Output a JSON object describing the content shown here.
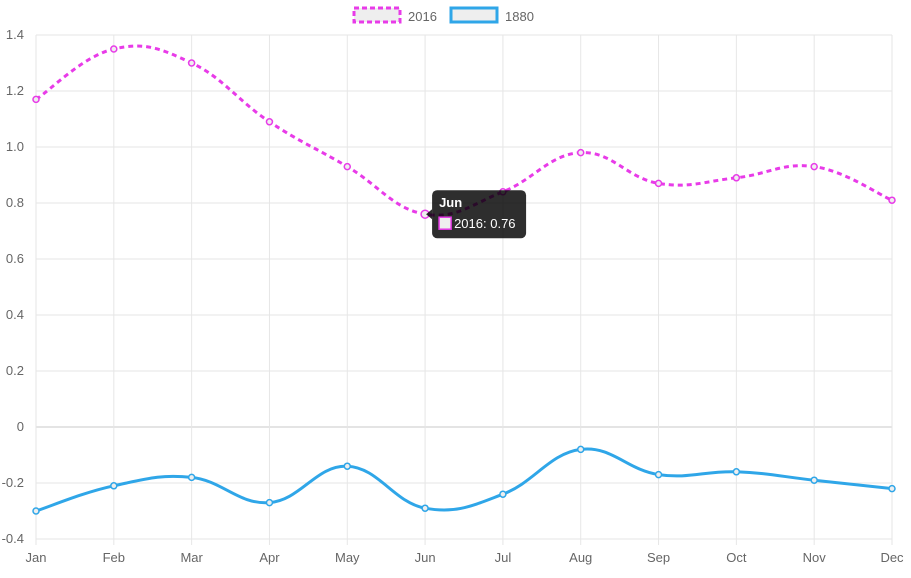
{
  "chart_data": {
    "type": "line",
    "categories": [
      "Jan",
      "Feb",
      "Mar",
      "Apr",
      "May",
      "Jun",
      "Jul",
      "Aug",
      "Sep",
      "Oct",
      "Nov",
      "Dec"
    ],
    "series": [
      {
        "name": "2016",
        "values": [
          1.17,
          1.35,
          1.3,
          1.09,
          0.93,
          0.76,
          0.84,
          0.98,
          0.87,
          0.89,
          0.93,
          0.81
        ],
        "color": "#e83be8",
        "fill": "#eeeeee",
        "dashed": true
      },
      {
        "name": "1880",
        "values": [
          -0.3,
          -0.21,
          -0.18,
          -0.27,
          -0.14,
          -0.29,
          -0.24,
          -0.08,
          -0.17,
          -0.16,
          -0.19,
          -0.22
        ],
        "color": "#2fa6e8",
        "fill": "#eeeeee",
        "dashed": false
      }
    ],
    "y_ticks": [
      "1.4",
      "1.2",
      "1.0",
      "0.8",
      "0.6",
      "0.4",
      "0.2",
      "0",
      "-0.2",
      "-0.4"
    ],
    "ylim": [
      -0.4,
      1.4
    ],
    "grid": true,
    "legend": "top-center",
    "tooltip": {
      "title": "Jun",
      "label": "2016: 0.76",
      "category_index": 5,
      "series_index": 0
    }
  }
}
